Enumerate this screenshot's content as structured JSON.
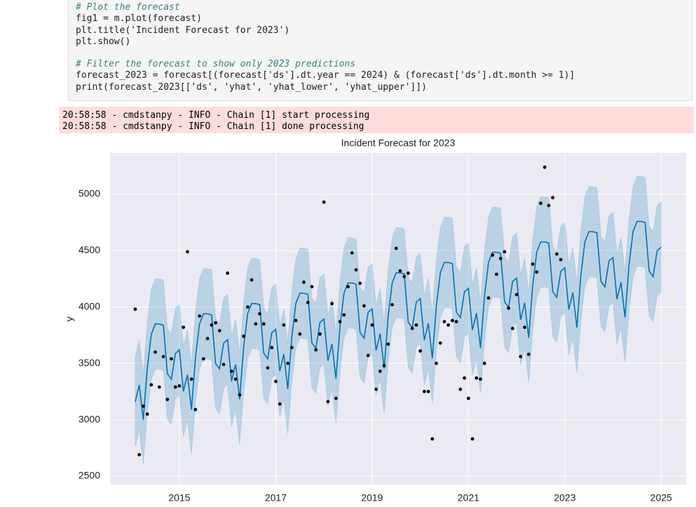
{
  "code": {
    "blocks": [
      [
        "# Plot the forecast",
        "fig1 = m.plot(forecast)",
        "plt.title('Incident Forecast for 2023')",
        "plt.show()"
      ],
      [
        "# Filter the forecast to show only 2023 predictions",
        "forecast_2023 = forecast[(forecast['ds'].dt.year == 2024) & (forecast['ds'].dt.month >= 1)]",
        "print(forecast_2023[['ds', 'yhat', 'yhat_lower', 'yhat_upper']])"
      ]
    ]
  },
  "output": {
    "lines": [
      "20:58:58 - cmdstanpy - INFO - Chain [1] start processing",
      "20:58:58 - cmdstanpy - INFO - Chain [1] done processing"
    ]
  },
  "chart_data": {
    "type": "forecast",
    "title": "Incident Forecast for 2023",
    "y_label": "y",
    "x": [
      2014.083,
      2014.167,
      2014.25,
      2014.333,
      2014.417,
      2014.5,
      2014.583,
      2014.667,
      2014.75,
      2014.833,
      2014.917,
      2015,
      2015.083,
      2015.167,
      2015.25,
      2015.333,
      2015.417,
      2015.5,
      2015.583,
      2015.667,
      2015.75,
      2015.833,
      2015.917,
      2016,
      2016.083,
      2016.167,
      2016.25,
      2016.333,
      2016.417,
      2016.5,
      2016.583,
      2016.667,
      2016.75,
      2016.833,
      2016.917,
      2017,
      2017.083,
      2017.167,
      2017.25,
      2017.333,
      2017.417,
      2017.5,
      2017.583,
      2017.667,
      2017.75,
      2017.833,
      2017.917,
      2018,
      2018.083,
      2018.167,
      2018.25,
      2018.333,
      2018.417,
      2018.5,
      2018.583,
      2018.667,
      2018.75,
      2018.833,
      2018.917,
      2019,
      2019.083,
      2019.167,
      2019.25,
      2019.333,
      2019.417,
      2019.5,
      2019.583,
      2019.667,
      2019.75,
      2019.833,
      2019.917,
      2020,
      2020.083,
      2020.167,
      2020.25,
      2020.333,
      2020.417,
      2020.5,
      2020.583,
      2020.667,
      2020.75,
      2020.833,
      2020.917,
      2021,
      2021.083,
      2021.167,
      2021.25,
      2021.333,
      2021.417,
      2021.5,
      2021.583,
      2021.667,
      2021.75,
      2021.833,
      2021.917,
      2022,
      2022.083,
      2022.167,
      2022.25,
      2022.333,
      2022.417,
      2022.5,
      2022.583,
      2022.667,
      2022.75,
      2022.833,
      2022.917,
      2023,
      2023.083,
      2023.167,
      2023.25,
      2023.333,
      2023.417,
      2023.5,
      2023.583,
      2023.667,
      2023.75,
      2023.833,
      2023.917,
      2024,
      2024.083,
      2024.167,
      2024.25,
      2024.333,
      2024.417,
      2024.5,
      2024.583,
      2024.667,
      2024.75,
      2024.833,
      2024.917,
      2025
    ],
    "yhat": [
      3159,
      3309,
      2999,
      3459,
      3759,
      3849,
      3849,
      3839,
      3409,
      3359,
      3589,
      3620,
      3250,
      3400,
      3090,
      3550,
      3850,
      3940,
      3940,
      3930,
      3500,
      3450,
      3680,
      3711,
      3341,
      3491,
      3181,
      3641,
      3941,
      4031,
      4031,
      4021,
      3591,
      3541,
      3771,
      3802,
      3432,
      3582,
      3272,
      3732,
      4032,
      4122,
      4122,
      4112,
      3682,
      3632,
      3862,
      3893,
      3523,
      3673,
      3363,
      3823,
      4123,
      4213,
      4213,
      4203,
      3773,
      3723,
      3953,
      3984,
      3614,
      3764,
      3454,
      3914,
      4214,
      4304,
      4304,
      4294,
      3864,
      3814,
      4044,
      4075,
      3705,
      3855,
      3545,
      4005,
      4305,
      4395,
      4395,
      4385,
      3955,
      3905,
      4135,
      4166,
      3796,
      3946,
      3636,
      4096,
      4396,
      4486,
      4486,
      4476,
      4046,
      3996,
      4226,
      4257,
      3887,
      4037,
      3727,
      4187,
      4487,
      4577,
      4577,
      4567,
      4137,
      4087,
      4317,
      4348,
      3978,
      4128,
      3818,
      4278,
      4578,
      4668,
      4668,
      4658,
      4228,
      4178,
      4408,
      4439,
      4069,
      4219,
      3909,
      4369,
      4669,
      4759,
      4759,
      4749,
      4319,
      4269,
      4499,
      4530
    ],
    "yhat_lower": [
      2759,
      2909,
      2599,
      3059,
      3359,
      3449,
      3449,
      3439,
      3009,
      2959,
      3189,
      3220,
      2850,
      3000,
      2690,
      3150,
      3450,
      3540,
      3540,
      3530,
      3100,
      3050,
      3280,
      3311,
      2941,
      3091,
      2781,
      3241,
      3541,
      3631,
      3631,
      3621,
      3191,
      3141,
      3371,
      3402,
      3032,
      3182,
      2872,
      3332,
      3632,
      3722,
      3722,
      3712,
      3282,
      3232,
      3462,
      3493,
      3123,
      3273,
      2963,
      3423,
      3723,
      3813,
      3813,
      3803,
      3373,
      3323,
      3553,
      3584,
      3214,
      3364,
      3054,
      3514,
      3814,
      3904,
      3904,
      3894,
      3464,
      3414,
      3644,
      3675,
      3305,
      3455,
      3145,
      3605,
      3905,
      3995,
      3995,
      3985,
      3555,
      3505,
      3735,
      3766,
      3396,
      3546,
      3236,
      3696,
      3996,
      4086,
      4086,
      4076,
      3646,
      3596,
      3826,
      3857,
      3487,
      3637,
      3327,
      3787,
      4087,
      4177,
      4177,
      4167,
      3737,
      3687,
      3917,
      3948,
      3578,
      3728,
      3418,
      3878,
      4178,
      4268,
      4268,
      4258,
      3828,
      3778,
      4008,
      4039,
      3669,
      3819,
      3509,
      3969,
      4269,
      4359,
      4359,
      4349,
      3919,
      3869,
      4099,
      4130
    ],
    "yhat_upper": [
      3559,
      3709,
      3399,
      3859,
      4159,
      4249,
      4249,
      4239,
      3809,
      3759,
      3989,
      4020,
      3650,
      3800,
      3490,
      3950,
      4250,
      4340,
      4340,
      4330,
      3900,
      3850,
      4080,
      4111,
      3741,
      3891,
      3581,
      4041,
      4341,
      4431,
      4431,
      4421,
      3991,
      3941,
      4171,
      4202,
      3832,
      3982,
      3672,
      4132,
      4432,
      4522,
      4522,
      4512,
      4082,
      4032,
      4262,
      4293,
      3923,
      4073,
      3763,
      4223,
      4523,
      4613,
      4613,
      4603,
      4173,
      4123,
      4353,
      4384,
      4014,
      4164,
      3854,
      4314,
      4614,
      4704,
      4704,
      4694,
      4264,
      4214,
      4444,
      4475,
      4105,
      4255,
      3945,
      4405,
      4705,
      4795,
      4795,
      4785,
      4355,
      4305,
      4535,
      4566,
      4196,
      4346,
      4036,
      4496,
      4796,
      4886,
      4886,
      4876,
      4446,
      4396,
      4626,
      4657,
      4287,
      4437,
      4127,
      4587,
      4887,
      4977,
      4977,
      4967,
      4537,
      4487,
      4717,
      4748,
      4378,
      4528,
      4218,
      4678,
      4978,
      5068,
      5068,
      5058,
      4628,
      4578,
      4808,
      4839,
      4469,
      4619,
      4309,
      4769,
      5069,
      5159,
      5159,
      5149,
      4719,
      4669,
      4899,
      4930
    ],
    "actual": [
      3980,
      2690,
      3120,
      3050,
      3310,
      3600,
      3290,
      3560,
      3180,
      3540,
      3290,
      3300,
      3820,
      4490,
      3360,
      3090,
      3920,
      3540,
      3720,
      3840,
      3860,
      3790,
      3490,
      4300,
      3430,
      3360,
      3220,
      3740,
      4000,
      4240,
      3850,
      3940,
      3850,
      3460,
      3640,
      3340,
      3140,
      3840,
      3500,
      3640,
      3880,
      3760,
      4220,
      4040,
      4180,
      3620,
      3760,
      4930,
      3160,
      4030,
      3190,
      3870,
      3930,
      4180,
      4480,
      4330,
      4210,
      4010,
      3570,
      3840,
      3270,
      3430,
      3480,
      3670,
      4020,
      4520,
      4320,
      4270,
      4300,
      3810,
      3840,
      3610,
      3250,
      3250,
      2830,
      3500,
      3680,
      3870,
      3840,
      3880,
      3870,
      3270,
      3370,
      3190,
      2830,
      3370,
      3360,
      3500,
      4080,
      4460,
      4290,
      4430,
      4490,
      3990,
      3810,
      4110,
      3560,
      3820,
      3580,
      4380,
      4310,
      4920,
      5240,
      4900,
      4970,
      4470,
      4420,
      null,
      null,
      null,
      null,
      null,
      null,
      null,
      null,
      null,
      null,
      null,
      null,
      null,
      null,
      null,
      null,
      null,
      null,
      null,
      null,
      null,
      null,
      null,
      null,
      null
    ],
    "line_color": "#0072b2",
    "band_color": "#0072b2",
    "point_color": "#000000",
    "xlim": [
      2013.56,
      2025.52
    ],
    "ylim": [
      2425,
      5367
    ],
    "xticks": [
      2015,
      2017,
      2019,
      2021,
      2023,
      2025
    ],
    "yticks": [
      2500,
      3000,
      3500,
      4000,
      4500,
      5000
    ],
    "grid": true
  }
}
